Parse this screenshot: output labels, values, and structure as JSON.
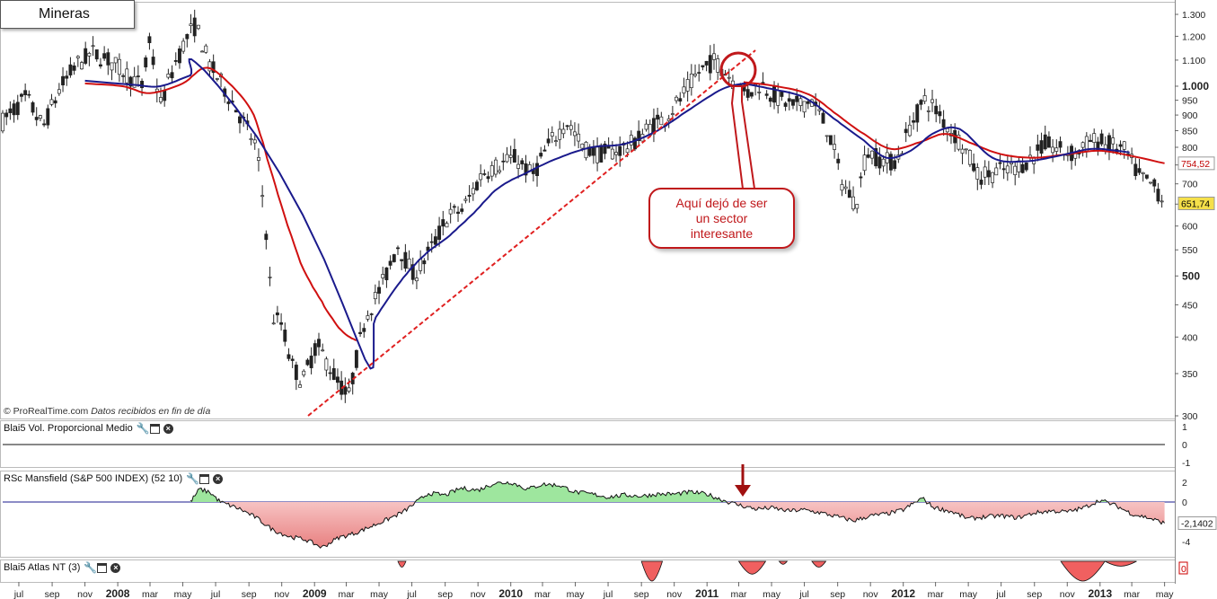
{
  "chart_title": "Mineras",
  "credit": "© ProRealTime.com",
  "credit_note": "Datos recibidos en fin de día",
  "annotation": [
    "Aquí dejó de ser",
    "un sector",
    "interesante"
  ],
  "colors": {
    "ma_red": "#d01010",
    "ma_blue": "#1a1a8c",
    "up": "#ffffff",
    "down": "#222222",
    "trend": "#e02020",
    "green_fill": "#9ee69e",
    "red_fill": "#f2a8a8"
  },
  "chart_data": [
    {
      "type": "candlestick",
      "title": "Mineras",
      "y_scale": "log",
      "ylim": [
        285,
        1330
      ],
      "y_ticks": [
        {
          "v": 1300,
          "t": "1.300"
        },
        {
          "v": 1200,
          "t": "1.200"
        },
        {
          "v": 1100,
          "t": "1.100"
        },
        {
          "v": 1000,
          "t": "1.000"
        },
        {
          "v": 950,
          "t": "950"
        },
        {
          "v": 900,
          "t": "900"
        },
        {
          "v": 850,
          "t": "850"
        },
        {
          "v": 800,
          "t": "800"
        },
        {
          "v": 750,
          "t": "750"
        },
        {
          "v": 700,
          "t": "700"
        },
        {
          "v": 650,
          "t": "650"
        },
        {
          "v": 600,
          "t": "600"
        },
        {
          "v": 550,
          "t": "550"
        },
        {
          "v": 500,
          "t": "500"
        },
        {
          "v": 450,
          "t": "450"
        },
        {
          "v": 400,
          "t": "400"
        },
        {
          "v": 350,
          "t": "350"
        },
        {
          "v": 300,
          "t": "300"
        }
      ],
      "last_values": [
        {
          "label": "754,52",
          "color": "#c00000",
          "value": 754.52
        },
        {
          "label": "651,74",
          "color": "#000000",
          "bg": "#f5e04a",
          "value": 651.74
        }
      ],
      "x_range": [
        "2007-06-01",
        "2013-05-20"
      ],
      "x_labels": [
        {
          "d": "2007-07-01",
          "t": "jul"
        },
        {
          "d": "2007-09-01",
          "t": "sep"
        },
        {
          "d": "2007-11-01",
          "t": "nov"
        },
        {
          "d": "2008-01-01",
          "t": "2008",
          "bold": true
        },
        {
          "d": "2008-03-01",
          "t": "mar"
        },
        {
          "d": "2008-05-01",
          "t": "may"
        },
        {
          "d": "2008-07-01",
          "t": "jul"
        },
        {
          "d": "2008-09-01",
          "t": "sep"
        },
        {
          "d": "2008-11-01",
          "t": "nov"
        },
        {
          "d": "2009-01-01",
          "t": "2009",
          "bold": true
        },
        {
          "d": "2009-03-01",
          "t": "mar"
        },
        {
          "d": "2009-05-01",
          "t": "may"
        },
        {
          "d": "2009-07-01",
          "t": "jul"
        },
        {
          "d": "2009-09-01",
          "t": "sep"
        },
        {
          "d": "2009-11-01",
          "t": "nov"
        },
        {
          "d": "2010-01-01",
          "t": "2010",
          "bold": true
        },
        {
          "d": "2010-03-01",
          "t": "mar"
        },
        {
          "d": "2010-05-01",
          "t": "may"
        },
        {
          "d": "2010-07-01",
          "t": "jul"
        },
        {
          "d": "2010-09-01",
          "t": "sep"
        },
        {
          "d": "2010-11-01",
          "t": "nov"
        },
        {
          "d": "2011-01-01",
          "t": "2011",
          "bold": true
        },
        {
          "d": "2011-03-01",
          "t": "mar"
        },
        {
          "d": "2011-05-01",
          "t": "may"
        },
        {
          "d": "2011-07-01",
          "t": "jul"
        },
        {
          "d": "2011-09-01",
          "t": "sep"
        },
        {
          "d": "2011-11-01",
          "t": "nov"
        },
        {
          "d": "2012-01-01",
          "t": "2012",
          "bold": true
        },
        {
          "d": "2012-03-01",
          "t": "mar"
        },
        {
          "d": "2012-05-01",
          "t": "may"
        },
        {
          "d": "2012-07-01",
          "t": "jul"
        },
        {
          "d": "2012-09-01",
          "t": "sep"
        },
        {
          "d": "2012-11-01",
          "t": "nov"
        },
        {
          "d": "2013-01-01",
          "t": "2013",
          "bold": true
        },
        {
          "d": "2013-03-01",
          "t": "mar"
        },
        {
          "d": "2013-05-01",
          "t": "may"
        }
      ],
      "close_path": [
        [
          "2007-06-01",
          880
        ],
        [
          "2007-07-15",
          960
        ],
        [
          "2007-08-15",
          860
        ],
        [
          "2007-09-15",
          990
        ],
        [
          "2007-10-15",
          1080
        ],
        [
          "2007-11-15",
          1130
        ],
        [
          "2007-12-15",
          1100
        ],
        [
          "2008-01-15",
          1050
        ],
        [
          "2008-02-15",
          1000
        ],
        [
          "2008-03-01",
          1180
        ],
        [
          "2008-03-20",
          930
        ],
        [
          "2008-04-15",
          1080
        ],
        [
          "2008-05-10",
          1200
        ],
        [
          "2008-05-25",
          1250
        ],
        [
          "2008-06-20",
          1080
        ],
        [
          "2008-07-15",
          1000
        ],
        [
          "2008-08-15",
          900
        ],
        [
          "2008-09-15",
          800
        ],
        [
          "2008-10-01",
          620
        ],
        [
          "2008-10-15",
          430
        ],
        [
          "2008-11-01",
          420
        ],
        [
          "2008-11-20",
          360
        ],
        [
          "2008-12-10",
          340
        ],
        [
          "2009-01-05",
          390
        ],
        [
          "2009-02-05",
          350
        ],
        [
          "2009-03-05",
          320
        ],
        [
          "2009-04-05",
          430
        ],
        [
          "2009-05-05",
          480
        ],
        [
          "2009-06-05",
          560
        ],
        [
          "2009-07-05",
          500
        ],
        [
          "2009-08-05",
          550
        ],
        [
          "2009-09-05",
          620
        ],
        [
          "2009-10-05",
          640
        ],
        [
          "2009-11-10",
          730
        ],
        [
          "2009-12-10",
          750
        ],
        [
          "2010-01-10",
          770
        ],
        [
          "2010-02-10",
          720
        ],
        [
          "2010-03-10",
          800
        ],
        [
          "2010-04-15",
          880
        ],
        [
          "2010-05-15",
          800
        ],
        [
          "2010-06-15",
          780
        ],
        [
          "2010-07-15",
          790
        ],
        [
          "2010-08-15",
          810
        ],
        [
          "2010-09-15",
          860
        ],
        [
          "2010-10-15",
          890
        ],
        [
          "2010-11-15",
          960
        ],
        [
          "2010-12-15",
          1050
        ],
        [
          "2011-01-15",
          1100
        ],
        [
          "2011-02-15",
          1030
        ],
        [
          "2011-03-15",
          970
        ],
        [
          "2011-04-10",
          1010
        ],
        [
          "2011-05-10",
          960
        ],
        [
          "2011-06-10",
          930
        ],
        [
          "2011-07-15",
          950
        ],
        [
          "2011-08-15",
          850
        ],
        [
          "2011-09-10",
          700
        ],
        [
          "2011-10-05",
          650
        ],
        [
          "2011-10-25",
          790
        ],
        [
          "2011-11-25",
          760
        ],
        [
          "2011-12-20",
          760
        ],
        [
          "2012-01-15",
          870
        ],
        [
          "2012-02-10",
          950
        ],
        [
          "2012-02-25",
          930
        ],
        [
          "2012-03-20",
          870
        ],
        [
          "2012-04-20",
          810
        ],
        [
          "2012-05-20",
          720
        ],
        [
          "2012-06-20",
          730
        ],
        [
          "2012-07-20",
          740
        ],
        [
          "2012-08-20",
          760
        ],
        [
          "2012-09-20",
          810
        ],
        [
          "2012-10-20",
          790
        ],
        [
          "2012-11-15",
          780
        ],
        [
          "2012-12-15",
          820
        ],
        [
          "2013-01-15",
          810
        ],
        [
          "2013-02-15",
          790
        ],
        [
          "2013-03-15",
          720
        ],
        [
          "2013-04-15",
          690
        ],
        [
          "2013-05-01",
          651.74
        ]
      ],
      "ma_red_path": [
        [
          "2007-11-01",
          1010
        ],
        [
          "2008-01-10",
          1000
        ],
        [
          "2008-03-01",
          975
        ],
        [
          "2008-05-01",
          1010
        ],
        [
          "2008-06-15",
          1070
        ],
        [
          "2008-08-01",
          1000
        ],
        [
          "2008-09-10",
          900
        ],
        [
          "2008-10-15",
          720
        ],
        [
          "2008-12-01",
          540
        ],
        [
          "2009-01-15",
          455
        ],
        [
          "2009-02-20",
          410
        ],
        [
          "2009-03-20",
          395
        ]
      ],
      "ma_blue_path": [
        [
          "2007-11-01",
          1020
        ],
        [
          "2008-02-01",
          1005
        ],
        [
          "2008-03-20",
          1000
        ],
        [
          "2008-05-15",
          1040
        ],
        [
          "2008-06-10",
          1060
        ],
        [
          "2009-03-20",
          398
        ],
        [
          "2009-04-25",
          430
        ],
        [
          "2009-06-10",
          490
        ],
        [
          "2009-07-25",
          540
        ],
        [
          "2009-09-10",
          580
        ],
        [
          "2009-10-25",
          630
        ],
        [
          "2009-12-10",
          690
        ],
        [
          "2010-02-01",
          730
        ],
        [
          "2010-04-01",
          770
        ],
        [
          "2010-06-01",
          800
        ],
        [
          "2010-08-01",
          810
        ],
        [
          "2010-10-01",
          850
        ],
        [
          "2010-12-01",
          920
        ],
        [
          "2011-01-30",
          990
        ],
        [
          "2011-03-10",
          1010
        ]
      ],
      "ma_red_tail": [
        [
          "2011-03-10",
          1015
        ],
        [
          "2011-05-10",
          1000
        ],
        [
          "2011-07-10",
          970
        ],
        [
          "2011-09-01",
          900
        ],
        [
          "2011-10-20",
          840
        ],
        [
          "2011-12-10",
          795
        ],
        [
          "2012-02-01",
          815
        ],
        [
          "2012-03-20",
          840
        ],
        [
          "2012-05-10",
          810
        ],
        [
          "2012-07-01",
          780
        ],
        [
          "2012-09-01",
          770
        ],
        [
          "2012-11-01",
          780
        ],
        [
          "2013-01-01",
          790
        ],
        [
          "2013-03-01",
          775
        ],
        [
          "2013-05-01",
          754.52
        ]
      ],
      "ma_blue_tail": [
        [
          "2011-03-10",
          1010
        ],
        [
          "2011-05-01",
          990
        ],
        [
          "2011-07-01",
          960
        ],
        [
          "2011-09-01",
          880
        ],
        [
          "2011-10-20",
          820
        ],
        [
          "2011-12-01",
          770
        ],
        [
          "2012-01-15",
          790
        ],
        [
          "2012-03-01",
          845
        ],
        [
          "2012-04-15",
          855
        ],
        [
          "2012-06-15",
          770
        ],
        [
          "2012-08-15",
          760
        ],
        [
          "2012-10-15",
          775
        ],
        [
          "2012-12-15",
          795
        ],
        [
          "2013-02-01",
          790
        ],
        [
          "2013-02-25",
          785
        ]
      ],
      "trendline": [
        [
          "2008-12-20",
          300
        ],
        [
          "2011-04-01",
          1140
        ]
      ]
    },
    {
      "type": "line",
      "title": "Blai5 Vol. Proporcional Medio",
      "ylim": [
        -1,
        1
      ],
      "y_ticks": [
        {
          "v": 1,
          "t": "1"
        },
        {
          "v": 0,
          "t": "0"
        },
        {
          "v": -1,
          "t": "-1"
        }
      ],
      "last_value": "0",
      "values": [
        0
      ]
    },
    {
      "type": "area",
      "title": "RSc Mansfield (S&P 500 INDEX) (52 10)",
      "ylim": [
        -5,
        3
      ],
      "y_ticks": [
        {
          "v": 2,
          "t": "2"
        },
        {
          "v": 0,
          "t": "0"
        },
        {
          "v": -4,
          "t": "-4"
        }
      ],
      "last_value": "-2,1402",
      "series": [
        [
          "2008-05-15",
          0
        ],
        [
          "2008-06-01",
          1.3
        ],
        [
          "2008-06-20",
          1.0
        ],
        [
          "2008-07-10",
          0
        ],
        [
          "2008-08-15",
          -0.7
        ],
        [
          "2008-09-15",
          -1.6
        ],
        [
          "2008-10-15",
          -2.8
        ],
        [
          "2008-11-15",
          -3.5
        ],
        [
          "2008-12-15",
          -3.8
        ],
        [
          "2009-01-15",
          -4.6
        ],
        [
          "2009-02-15",
          -3.6
        ],
        [
          "2009-03-15",
          -3.2
        ],
        [
          "2009-04-15",
          -2.5
        ],
        [
          "2009-05-15",
          -1.8
        ],
        [
          "2009-06-15",
          -1.0
        ],
        [
          "2009-07-10",
          0
        ],
        [
          "2009-08-01",
          0.9
        ],
        [
          "2009-09-01",
          0.7
        ],
        [
          "2009-10-01",
          1.4
        ],
        [
          "2009-11-01",
          1.2
        ],
        [
          "2009-12-01",
          1.9
        ],
        [
          "2010-01-01",
          2.0
        ],
        [
          "2010-02-01",
          1.3
        ],
        [
          "2010-03-01",
          1.8
        ],
        [
          "2010-04-01",
          1.7
        ],
        [
          "2010-05-01",
          1.0
        ],
        [
          "2010-06-01",
          0.8
        ],
        [
          "2010-07-01",
          0.5
        ],
        [
          "2010-08-01",
          0.7
        ],
        [
          "2010-09-01",
          0.6
        ],
        [
          "2010-10-01",
          0.8
        ],
        [
          "2010-11-01",
          0.8
        ],
        [
          "2010-12-01",
          1.0
        ],
        [
          "2011-01-01",
          0.8
        ],
        [
          "2011-01-20",
          0.4
        ],
        [
          "2011-02-10",
          0
        ],
        [
          "2011-03-01",
          -0.3
        ],
        [
          "2011-04-01",
          -0.7
        ],
        [
          "2011-05-01",
          -0.6
        ],
        [
          "2011-06-01",
          -0.9
        ],
        [
          "2011-07-01",
          -0.8
        ],
        [
          "2011-08-01",
          -1.1
        ],
        [
          "2011-09-01",
          -1.5
        ],
        [
          "2011-10-01",
          -1.9
        ],
        [
          "2011-11-01",
          -1.4
        ],
        [
          "2011-12-01",
          -1.2
        ],
        [
          "2012-01-01",
          -0.8
        ],
        [
          "2012-02-05",
          0.4
        ],
        [
          "2012-02-25",
          -0.5
        ],
        [
          "2012-04-01",
          -1.0
        ],
        [
          "2012-05-01",
          -1.7
        ],
        [
          "2012-06-01",
          -1.5
        ],
        [
          "2012-07-01",
          -1.4
        ],
        [
          "2012-08-01",
          -1.6
        ],
        [
          "2012-09-01",
          -1.1
        ],
        [
          "2012-10-01",
          -0.9
        ],
        [
          "2012-11-01",
          -1.0
        ],
        [
          "2012-12-01",
          -0.6
        ],
        [
          "2013-01-01",
          0.2
        ],
        [
          "2013-02-01",
          -0.4
        ],
        [
          "2013-03-01",
          -1.2
        ],
        [
          "2013-04-01",
          -1.6
        ],
        [
          "2013-05-01",
          -2.14
        ]
      ]
    },
    {
      "type": "area",
      "title": "Blai5 Atlas NT (3)",
      "ylim": [
        -1,
        0
      ],
      "y_ticks": [
        {
          "v": 0,
          "t": "0"
        }
      ],
      "last_value": "0",
      "dips": [
        [
          "2009-06-05",
          "2009-06-20",
          0.3
        ],
        [
          "2010-09-01",
          "2010-10-10",
          1.0
        ],
        [
          "2011-03-01",
          "2011-04-20",
          0.65
        ],
        [
          "2011-05-15",
          "2011-05-30",
          0.15
        ],
        [
          "2011-07-15",
          "2011-08-10",
          0.3
        ],
        [
          "2012-10-20",
          "2013-01-10",
          1.0
        ],
        [
          "2013-01-10",
          "2013-03-10",
          0.25
        ]
      ]
    }
  ]
}
